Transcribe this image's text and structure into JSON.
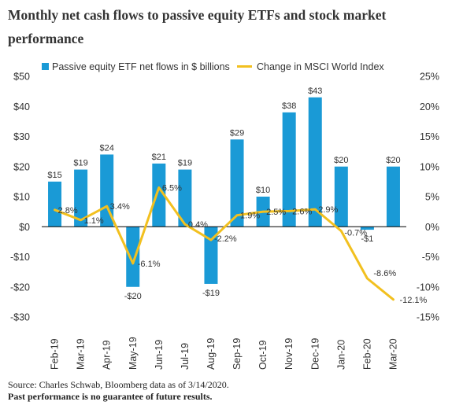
{
  "title": "Monthly net cash flows to passive equity ETFs and stock market performance",
  "footer": {
    "source": "Source: Charles Schwab, Bloomberg data as of 3/14/2020.",
    "disclaimer": "Past performance is no guarantee of future results."
  },
  "colors": {
    "bar": "#1a9ad6",
    "line": "#f2c01f",
    "text": "#333333",
    "zero_line": "#000000"
  },
  "chart_data": {
    "type": "bar+line",
    "categories": [
      "Feb-19",
      "Mar-19",
      "Apr-19",
      "May-19",
      "Jun-19",
      "Jul-19",
      "Aug-19",
      "Sep-19",
      "Oct-19",
      "Nov-19",
      "Dec-19",
      "Jan-20",
      "Feb-20",
      "Mar-20"
    ],
    "series": [
      {
        "name": "Passive equity ETF net flows in $ billions",
        "type": "bar",
        "axis": "left",
        "values": [
          15,
          19,
          24,
          -20,
          21,
          19,
          -19,
          29,
          10,
          38,
          43,
          20,
          -1,
          20
        ],
        "labels": [
          "$15",
          "$19",
          "$24",
          "-$20",
          "$21",
          "$19",
          "-$19",
          "$29",
          "$10",
          "$38",
          "$43",
          "$20",
          "-$1",
          "$20"
        ]
      },
      {
        "name": "Change in MSCI World Index",
        "type": "line",
        "axis": "right",
        "values": [
          2.8,
          1.1,
          3.4,
          -6.1,
          6.5,
          0.4,
          -2.2,
          1.9,
          2.5,
          2.6,
          2.9,
          -0.7,
          -8.6,
          -12.1
        ],
        "labels": [
          "2.8%",
          "1.1%",
          "3.4%",
          "-6.1%",
          "6.5%",
          "0.4%",
          "-2.2%",
          "1.9%",
          "2.5%",
          "2.6%",
          "2.9%",
          "-0.7%",
          "-8.6%",
          "-12.1%"
        ]
      }
    ],
    "y_left": {
      "ylim": [
        -30,
        50
      ],
      "ticks": [
        50,
        40,
        30,
        20,
        10,
        0,
        -10,
        -20,
        -30
      ],
      "tick_labels": [
        "$50",
        "$40",
        "$30",
        "$20",
        "$10",
        "$0",
        "-$10",
        "-$20",
        "-$30"
      ]
    },
    "y_right": {
      "ylim": [
        -15,
        25
      ],
      "ticks": [
        25,
        20,
        15,
        10,
        5,
        0,
        -5,
        -10,
        -15
      ],
      "tick_labels": [
        "25%",
        "20%",
        "15%",
        "10%",
        "5%",
        "0%",
        "-5%",
        "-10%",
        "-15%"
      ]
    },
    "legend_position": "top",
    "grid": false
  }
}
